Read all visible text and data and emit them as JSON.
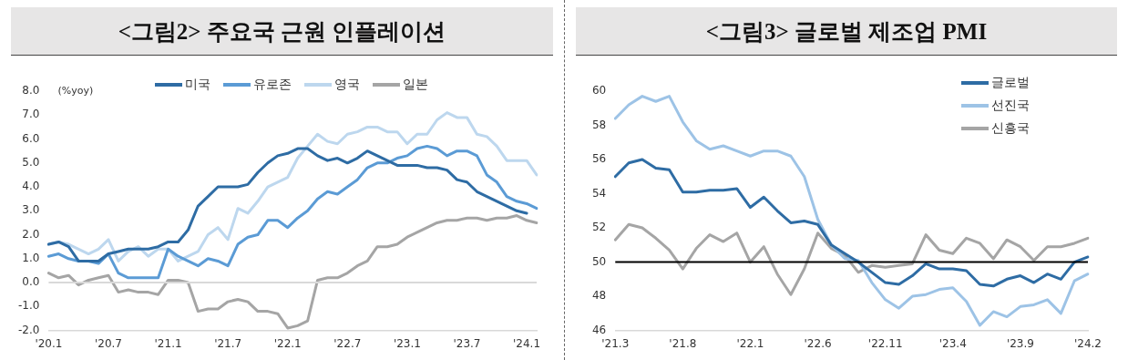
{
  "chart_data": [
    {
      "type": "line",
      "title": "<그림2> 주요국 근원 인플레이션",
      "ylabel": "(%yoy)",
      "marker": "none",
      "legend": "top",
      "grid": false,
      "categories": [
        "'20.1",
        null,
        null,
        null,
        null,
        null,
        "'20.7",
        null,
        null,
        null,
        null,
        null,
        "'21.1",
        null,
        null,
        null,
        null,
        null,
        "'21.7",
        null,
        null,
        null,
        null,
        null,
        "'22.1",
        null,
        null,
        null,
        null,
        null,
        "'22.7",
        null,
        null,
        null,
        null,
        null,
        "'23.1",
        null,
        null,
        null,
        null,
        null,
        "'23.7",
        null,
        null,
        null,
        null,
        null,
        "'24.1",
        null
      ],
      "ylim": [
        -2,
        8
      ],
      "yticks": [
        {
          "value": 8,
          "label": "8.0"
        },
        {
          "value": 7,
          "label": "7.0"
        },
        {
          "value": 6,
          "label": "6.0"
        },
        {
          "value": 5,
          "label": "5.0"
        },
        {
          "value": 4,
          "label": "4.0"
        },
        {
          "value": 3,
          "label": "3.0"
        },
        {
          "value": 2,
          "label": "2.0"
        },
        {
          "value": 1,
          "label": "1.0"
        },
        {
          "value": 0,
          "label": "0.0"
        },
        {
          "value": -1,
          "label": "-1.0"
        },
        {
          "value": -2,
          "label": "-2.0"
        }
      ],
      "ref_lines": [
        {
          "axis": "y",
          "value": 0,
          "color": "#d9d9d9"
        }
      ],
      "series": [
        {
          "name": "미국",
          "color": "#2e6ca4",
          "values": [
            1.6,
            1.7,
            1.5,
            0.9,
            0.9,
            0.9,
            1.2,
            1.3,
            1.4,
            1.4,
            1.4,
            1.5,
            1.7,
            1.7,
            2.2,
            3.2,
            3.6,
            4.0,
            4.0,
            4.0,
            4.1,
            4.6,
            5.0,
            5.3,
            5.4,
            5.6,
            5.6,
            5.3,
            5.1,
            5.2,
            5.0,
            5.2,
            5.5,
            5.3,
            5.1,
            4.9,
            4.9,
            4.9,
            4.8,
            4.8,
            4.7,
            4.3,
            4.2,
            3.8,
            3.6,
            3.4,
            3.2,
            3.0,
            2.9,
            null
          ]
        },
        {
          "name": "유로존",
          "color": "#5b9bd5",
          "values": [
            1.1,
            1.2,
            1.0,
            0.9,
            0.9,
            0.8,
            1.2,
            0.4,
            0.2,
            0.2,
            0.2,
            0.2,
            1.4,
            1.1,
            0.9,
            0.7,
            1.0,
            0.9,
            0.7,
            1.6,
            1.9,
            2.0,
            2.6,
            2.6,
            2.3,
            2.7,
            3.0,
            3.5,
            3.8,
            3.7,
            4.0,
            4.3,
            4.8,
            5.0,
            5.0,
            5.2,
            5.3,
            5.6,
            5.7,
            5.6,
            5.3,
            5.5,
            5.5,
            5.3,
            4.5,
            4.2,
            3.6,
            3.4,
            3.3,
            3.1
          ]
        },
        {
          "name": "영국",
          "color": "#bdd7ee",
          "values": [
            1.6,
            1.7,
            1.6,
            1.4,
            1.2,
            1.4,
            1.8,
            0.9,
            1.3,
            1.5,
            1.1,
            1.4,
            1.4,
            0.9,
            1.1,
            1.3,
            2.0,
            2.3,
            1.8,
            3.1,
            2.9,
            3.4,
            4.0,
            4.2,
            4.4,
            5.2,
            5.7,
            6.2,
            5.9,
            5.8,
            6.2,
            6.3,
            6.5,
            6.5,
            6.3,
            6.3,
            5.8,
            6.2,
            6.2,
            6.8,
            7.1,
            6.9,
            6.9,
            6.2,
            6.1,
            5.7,
            5.1,
            5.1,
            5.1,
            4.5
          ]
        },
        {
          "name": "일본",
          "color": "#a5a5a5",
          "values": [
            0.4,
            0.2,
            0.3,
            -0.1,
            0.1,
            0.2,
            0.3,
            -0.4,
            -0.3,
            -0.4,
            -0.4,
            -0.5,
            0.1,
            0.1,
            0.0,
            -1.2,
            -1.1,
            -1.1,
            -0.8,
            -0.7,
            -0.8,
            -1.2,
            -1.2,
            -1.3,
            -1.9,
            -1.8,
            -1.6,
            0.1,
            0.2,
            0.2,
            0.4,
            0.7,
            0.9,
            1.5,
            1.5,
            1.6,
            1.9,
            2.1,
            2.3,
            2.5,
            2.6,
            2.6,
            2.7,
            2.7,
            2.6,
            2.7,
            2.7,
            2.8,
            2.6,
            2.5
          ]
        }
      ]
    },
    {
      "type": "line",
      "title": "<그림3> 글로벌 제조업 PMI",
      "marker": "none",
      "legend": "top right",
      "grid": false,
      "categories": [
        "'21.3",
        null,
        null,
        null,
        null,
        "'21.8",
        null,
        null,
        null,
        null,
        "'22.1",
        null,
        null,
        null,
        null,
        "'22.6",
        null,
        null,
        null,
        null,
        "'22.11",
        null,
        null,
        null,
        null,
        "'23.4",
        null,
        null,
        null,
        null,
        "'23.9",
        null,
        null,
        null,
        null,
        "'24.2"
      ],
      "ylim": [
        46,
        60
      ],
      "yticks": [
        46,
        48,
        50,
        52,
        54,
        56,
        58,
        60
      ],
      "ref_lines": [
        {
          "axis": "y",
          "value": 50,
          "color": "#000000"
        }
      ],
      "series": [
        {
          "name": "글로벌",
          "color": "#2e6ca4",
          "values": [
            55.0,
            55.8,
            56.0,
            55.5,
            55.4,
            54.1,
            54.1,
            54.2,
            54.2,
            54.3,
            53.2,
            53.8,
            53.0,
            52.3,
            52.4,
            52.2,
            51.0,
            50.5,
            50.0,
            49.4,
            48.8,
            48.7,
            49.2,
            49.9,
            49.6,
            49.6,
            49.5,
            48.7,
            48.6,
            49.0,
            49.2,
            48.8,
            49.3,
            49.0,
            50.0,
            50.3
          ]
        },
        {
          "name": "선진국",
          "color": "#9dc3e6",
          "values": [
            58.4,
            59.2,
            59.7,
            59.4,
            59.7,
            58.2,
            57.1,
            56.6,
            56.8,
            56.5,
            56.2,
            56.5,
            56.5,
            56.2,
            55.0,
            52.5,
            51.0,
            50.2,
            50.1,
            48.8,
            47.8,
            47.3,
            48.0,
            48.1,
            48.4,
            48.5,
            47.7,
            46.3,
            47.1,
            46.8,
            47.4,
            47.5,
            47.8,
            47.0,
            48.9,
            49.3
          ]
        },
        {
          "name": "신흥국",
          "color": "#a5a5a5",
          "values": [
            51.3,
            52.2,
            52.0,
            51.4,
            50.7,
            49.6,
            50.8,
            51.6,
            51.2,
            51.7,
            50.0,
            50.9,
            49.3,
            48.1,
            49.6,
            51.7,
            50.8,
            50.4,
            49.4,
            49.8,
            49.7,
            49.8,
            49.9,
            51.6,
            50.7,
            50.5,
            51.4,
            51.1,
            50.2,
            51.3,
            50.9,
            50.1,
            50.9,
            50.9,
            51.1,
            51.4
          ]
        }
      ]
    }
  ]
}
